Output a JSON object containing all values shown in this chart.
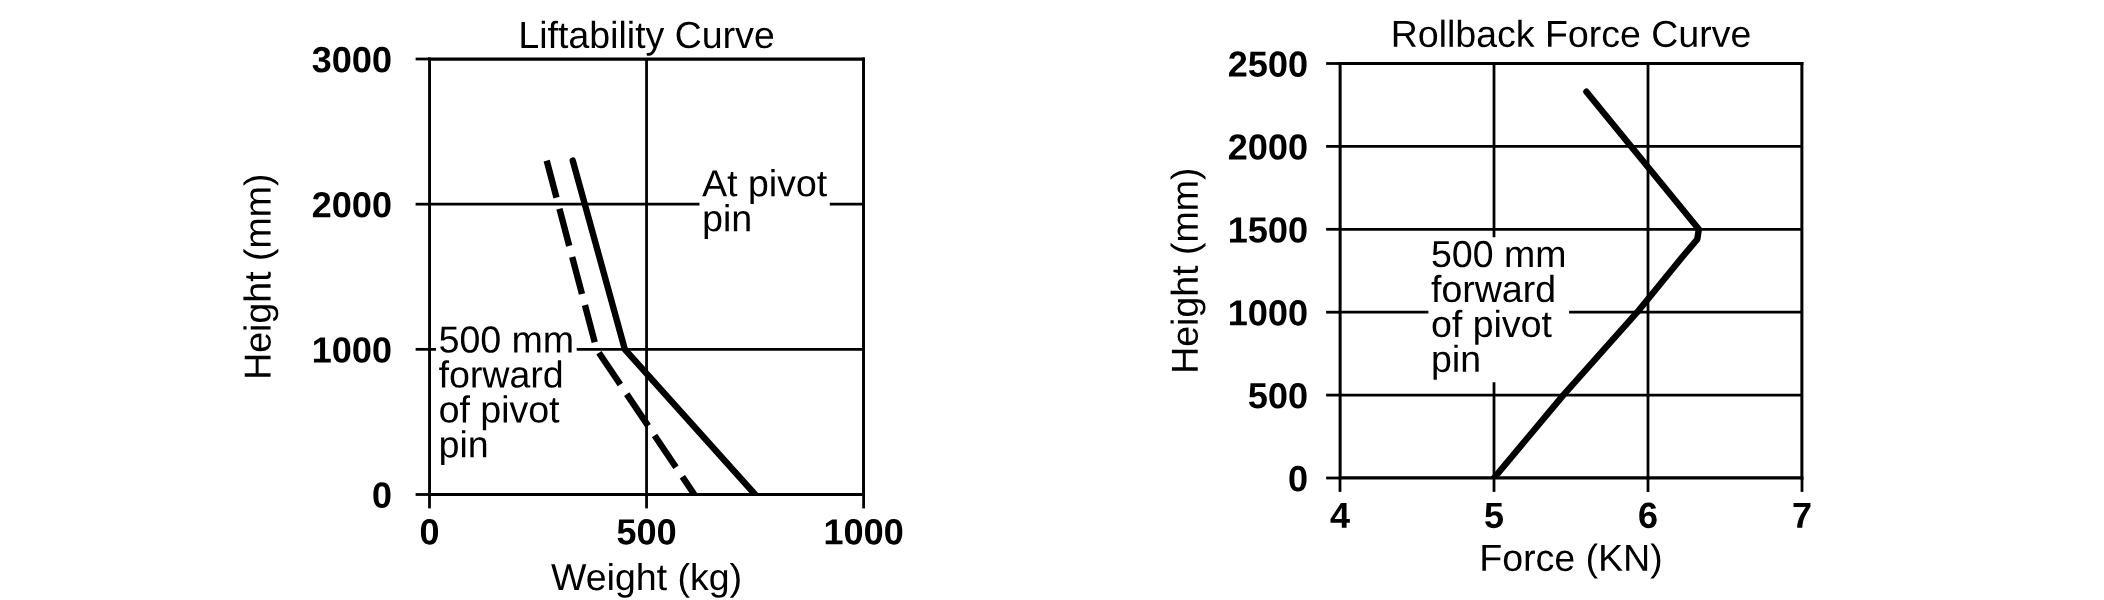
{
  "chart_data": [
    {
      "type": "line",
      "title": "Liftability Curve",
      "xlabel": "Weight (kg)",
      "ylabel": "Height (mm)",
      "xlim": [
        0,
        1000
      ],
      "ylim": [
        0,
        3000
      ],
      "xticks": [
        0,
        500,
        1000
      ],
      "yticks": [
        0,
        1000,
        2000,
        3000
      ],
      "grid": true,
      "series": [
        {
          "name": "At pivot pin",
          "color": "#000000",
          "line_style": "solid",
          "x": [
            330,
            450,
            750
          ],
          "values": [
            2300,
            1000,
            0
          ]
        },
        {
          "name": "500 mm forward of pivot pin",
          "color": "#000000",
          "line_style": "dashed",
          "x": [
            270,
            385,
            610
          ],
          "values": [
            2300,
            1000,
            0
          ]
        }
      ]
    },
    {
      "type": "line",
      "title": "Rollback Force Curve",
      "xlabel": "Force (KN)",
      "ylabel": "Height (mm)",
      "xlim": [
        4,
        7
      ],
      "ylim": [
        0,
        2500
      ],
      "xticks": [
        4,
        5,
        6,
        7
      ],
      "yticks": [
        0,
        500,
        1000,
        1500,
        2000,
        2500
      ],
      "grid": true,
      "series": [
        {
          "name": "500 mm forward of pivot pin",
          "color": "#000000",
          "line_style": "solid",
          "x": [
            5.0,
            5.45,
            5.93,
            6.22,
            6.32,
            6.33,
            5.6
          ],
          "values": [
            0,
            500,
            1000,
            1330,
            1440,
            1500,
            2330
          ]
        }
      ]
    }
  ]
}
